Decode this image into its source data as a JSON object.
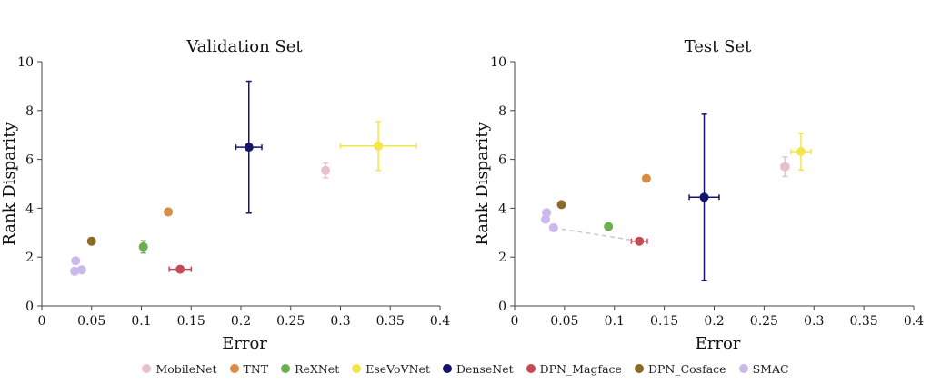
{
  "chart_data": [
    {
      "type": "scatter",
      "title": "Validation Set",
      "xlabel": "Error",
      "ylabel": "Rank Disparity",
      "xlim": [
        0,
        0.4
      ],
      "ylim": [
        0,
        10
      ],
      "xticks": [
        "0",
        "0.05",
        "0.1",
        "0.15",
        "0.2",
        "0.25",
        "0.3",
        "0.35",
        "0.4"
      ],
      "yticks": [
        "0",
        "2",
        "4",
        "6",
        "8",
        "10"
      ],
      "series": [
        {
          "name": "MobileNet",
          "points": [
            {
              "x": 0.285,
              "y": 5.55,
              "xerr": 0.002,
              "yerr": 0.3
            }
          ]
        },
        {
          "name": "TNT",
          "points": [
            {
              "x": 0.127,
              "y": 3.85,
              "xerr": 0.003,
              "yerr": 0.1
            }
          ]
        },
        {
          "name": "ReXNet",
          "points": [
            {
              "x": 0.102,
              "y": 2.42,
              "xerr": 0.002,
              "yerr": 0.25
            }
          ]
        },
        {
          "name": "EseVoVNet",
          "points": [
            {
              "x": 0.338,
              "y": 6.55,
              "xerr": 0.038,
              "yerr": 1.0
            }
          ]
        },
        {
          "name": "DenseNet",
          "points": [
            {
              "x": 0.208,
              "y": 6.5,
              "xerr": 0.013,
              "yerr": 2.7
            }
          ]
        },
        {
          "name": "DPN_Magface",
          "points": [
            {
              "x": 0.139,
              "y": 1.5,
              "xerr": 0.011,
              "yerr": 0.05
            }
          ]
        },
        {
          "name": "DPN_Cosface",
          "points": [
            {
              "x": 0.05,
              "y": 2.65,
              "xerr": 0.002,
              "yerr": 0.05
            }
          ]
        },
        {
          "name": "SMAC",
          "points": [
            {
              "x": 0.034,
              "y": 1.85
            },
            {
              "x": 0.033,
              "y": 1.42
            },
            {
              "x": 0.04,
              "y": 1.48
            }
          ]
        }
      ]
    },
    {
      "type": "scatter",
      "title": "Test Set",
      "xlabel": "Error",
      "ylabel": "Rank Disparity",
      "xlim": [
        0,
        0.4
      ],
      "ylim": [
        0,
        10
      ],
      "xticks": [
        "0",
        "0.05",
        "0.1",
        "0.15",
        "0.2",
        "0.25",
        "0.3",
        "0.35",
        "0.4"
      ],
      "yticks": [
        "0",
        "2",
        "4",
        "6",
        "8",
        "10"
      ],
      "connector": {
        "from": [
          0.039,
          3.2
        ],
        "to": [
          0.125,
          2.65
        ]
      },
      "series": [
        {
          "name": "MobileNet",
          "points": [
            {
              "x": 0.271,
              "y": 5.7,
              "xerr": 0.004,
              "yerr": 0.4
            }
          ]
        },
        {
          "name": "TNT",
          "points": [
            {
              "x": 0.132,
              "y": 5.22
            }
          ]
        },
        {
          "name": "ReXNet",
          "points": [
            {
              "x": 0.094,
              "y": 3.25
            }
          ]
        },
        {
          "name": "EseVoVNet",
          "points": [
            {
              "x": 0.287,
              "y": 6.32,
              "xerr": 0.01,
              "yerr": 0.75
            }
          ]
        },
        {
          "name": "DenseNet",
          "points": [
            {
              "x": 0.19,
              "y": 4.45,
              "xerr": 0.015,
              "yerr": 3.4
            }
          ]
        },
        {
          "name": "DPN_Magface",
          "points": [
            {
              "x": 0.125,
              "y": 2.65,
              "xerr": 0.008,
              "yerr": 0.05
            }
          ]
        },
        {
          "name": "DPN_Cosface",
          "points": [
            {
              "x": 0.047,
              "y": 4.15
            }
          ]
        },
        {
          "name": "SMAC",
          "points": [
            {
              "x": 0.032,
              "y": 3.82
            },
            {
              "x": 0.031,
              "y": 3.55
            },
            {
              "x": 0.039,
              "y": 3.2
            }
          ]
        }
      ]
    }
  ],
  "legend": [
    {
      "label": "MobileNet",
      "color": "#e8bfcf"
    },
    {
      "label": "TNT",
      "color": "#d98c45"
    },
    {
      "label": "ReXNet",
      "color": "#6ab04c"
    },
    {
      "label": "EseVoVNet",
      "color": "#f2e64a"
    },
    {
      "label": "DenseNet",
      "color": "#151570"
    },
    {
      "label": "DPN_Magface",
      "color": "#c84a55"
    },
    {
      "label": "DPN_Cosface",
      "color": "#8a6a25"
    },
    {
      "label": "SMAC",
      "color": "#cbb8ee"
    }
  ]
}
